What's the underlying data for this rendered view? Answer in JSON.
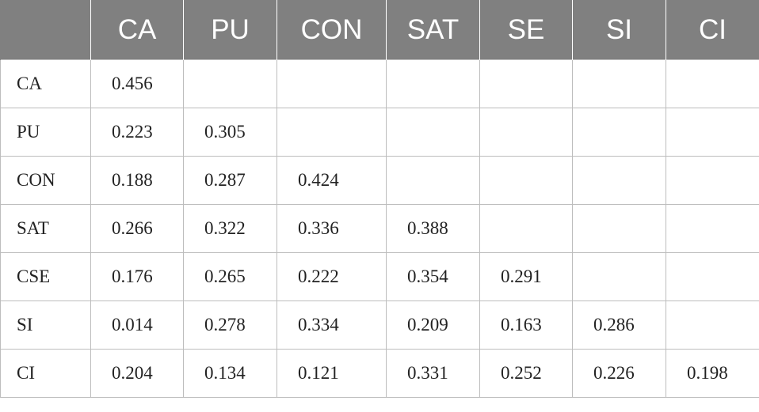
{
  "table": {
    "header": [
      "CA",
      "PU",
      "CON",
      "SAT",
      "SE",
      "SI",
      "CI"
    ],
    "rows": [
      [
        "CA",
        "0.456"
      ],
      [
        "PU",
        "0.223",
        "0.305"
      ],
      [
        "CON",
        "0.188",
        "0.287",
        "0.424"
      ],
      [
        "SAT",
        "0.266",
        "0.322",
        "0.336",
        "0.388"
      ],
      [
        "CSE",
        "0.176",
        "0.265",
        "0.222",
        "0.354",
        "0.291"
      ],
      [
        "SI",
        "0.014",
        "0.278",
        "0.334",
        "0.209",
        "0.163",
        "0.286"
      ],
      [
        "CI",
        "0.204",
        "0.134",
        "0.121",
        "0.331",
        "0.252",
        "0.226",
        "0.198"
      ]
    ]
  }
}
